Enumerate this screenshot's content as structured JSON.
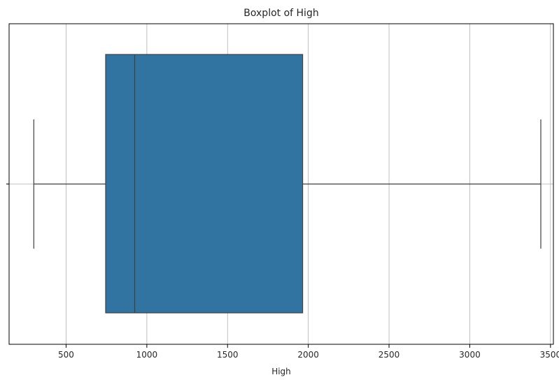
{
  "chart_data": {
    "type": "box",
    "title": "Boxplot of High",
    "xlabel": "High",
    "ylabel": "",
    "orientation": "horizontal",
    "xlim": [
      147,
      3518
    ],
    "xticks": [
      500,
      1000,
      1500,
      2000,
      2500,
      3000,
      3500
    ],
    "xtick_labels": [
      "500",
      "1000",
      "1500",
      "2000",
      "2500",
      "3000",
      "3500"
    ],
    "grid": true,
    "box": {
      "whisker_low": 300,
      "q1": 745,
      "median": 925,
      "q3": 1965,
      "whisker_high": 3440
    },
    "colors": {
      "box_fill": "#3274a1",
      "box_edge": "#3f3f3f",
      "grid": "#b0b0b0",
      "axes": "#000000"
    }
  }
}
